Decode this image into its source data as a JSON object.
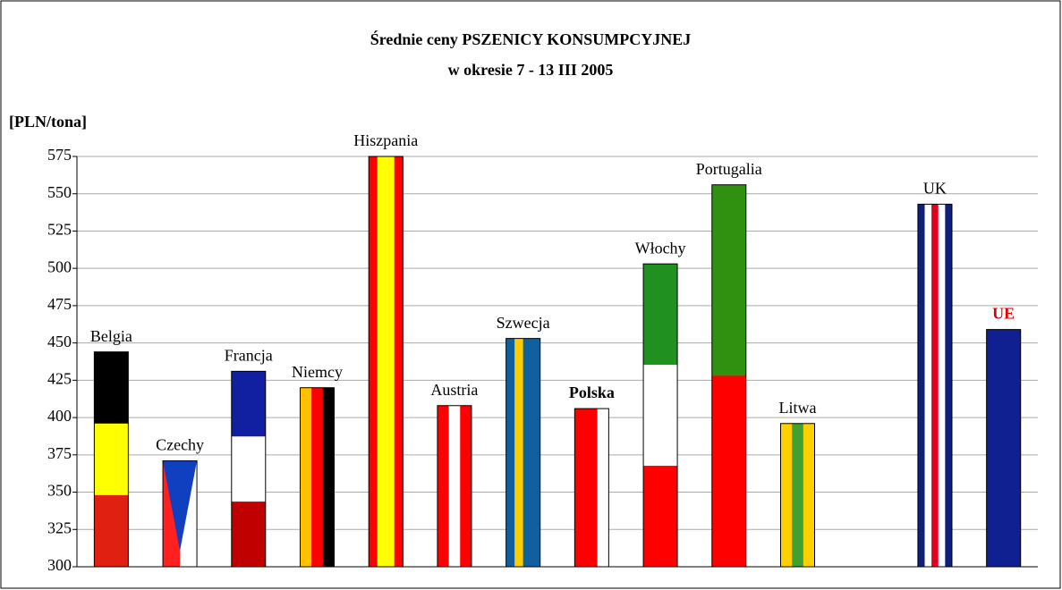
{
  "chart_data": {
    "type": "bar",
    "title": "Średnie ceny PSZENICY KONSUMPCYJNEJ",
    "subtitle": "w okresie 7 - 13 III 2005",
    "y_label": "[PLN/tona]",
    "categories": [
      "Belgia",
      "Czechy",
      "Francja",
      "Niemcy",
      "Hiszpania",
      "Austria",
      "Szwecja",
      "Polska",
      "Włochy",
      "Portugalia",
      "Litwa",
      null,
      "UK",
      "UE"
    ],
    "values": [
      444,
      371,
      431,
      420,
      575,
      408,
      453,
      406,
      503,
      556,
      396,
      null,
      543,
      459
    ],
    "flags": [
      {
        "dir": "h",
        "colors": [
          "#000000",
          "#ffff00",
          "#e02010"
        ]
      },
      {
        "dir": "v",
        "colors": [
          "#ff2020",
          "#ffffff"
        ],
        "top": "#1040c0"
      },
      {
        "dir": "h",
        "colors": [
          "#1020a0",
          "#ffffff",
          "#c00000"
        ]
      },
      {
        "dir": "v",
        "colors": [
          "#ffc000",
          "#ff0000",
          "#000000"
        ]
      },
      {
        "dir": "v",
        "colors": [
          "#ff0000",
          "#ffff00",
          "#ffff00",
          "#ff0000"
        ]
      },
      {
        "dir": "v",
        "colors": [
          "#ff0000",
          "#ffffff",
          "#ff0000"
        ]
      },
      {
        "dir": "v",
        "colors": [
          "#1060a0",
          "#ffcc00",
          "#1060a0",
          "#1060a0"
        ]
      },
      {
        "dir": "v",
        "colors": [
          "#ff0000",
          "#ff0000",
          "#ffffff"
        ]
      },
      {
        "dir": "h",
        "colors": [
          "#209020",
          "#ffffff",
          "#ff0000"
        ]
      },
      {
        "dir": "h",
        "colors": [
          "#309010",
          "#ff0000"
        ]
      },
      {
        "dir": "v",
        "colors": [
          "#ffd000",
          "#40a030",
          "#ffd000"
        ]
      },
      null,
      {
        "dir": "v",
        "colors": [
          "#10207a",
          "#ffffff",
          "#e00020",
          "#ffffff",
          "#10207a"
        ]
      },
      {
        "dir": "v",
        "colors": [
          "#102090"
        ]
      }
    ],
    "bold_labels": [
      7,
      13
    ],
    "label_colors": [
      null,
      null,
      null,
      null,
      null,
      null,
      null,
      null,
      null,
      null,
      null,
      null,
      null,
      "#e00000"
    ],
    "ylim": [
      300,
      575
    ],
    "yticks": [
      300,
      325,
      350,
      375,
      400,
      425,
      450,
      475,
      500,
      525,
      550,
      575
    ],
    "grid": true
  }
}
